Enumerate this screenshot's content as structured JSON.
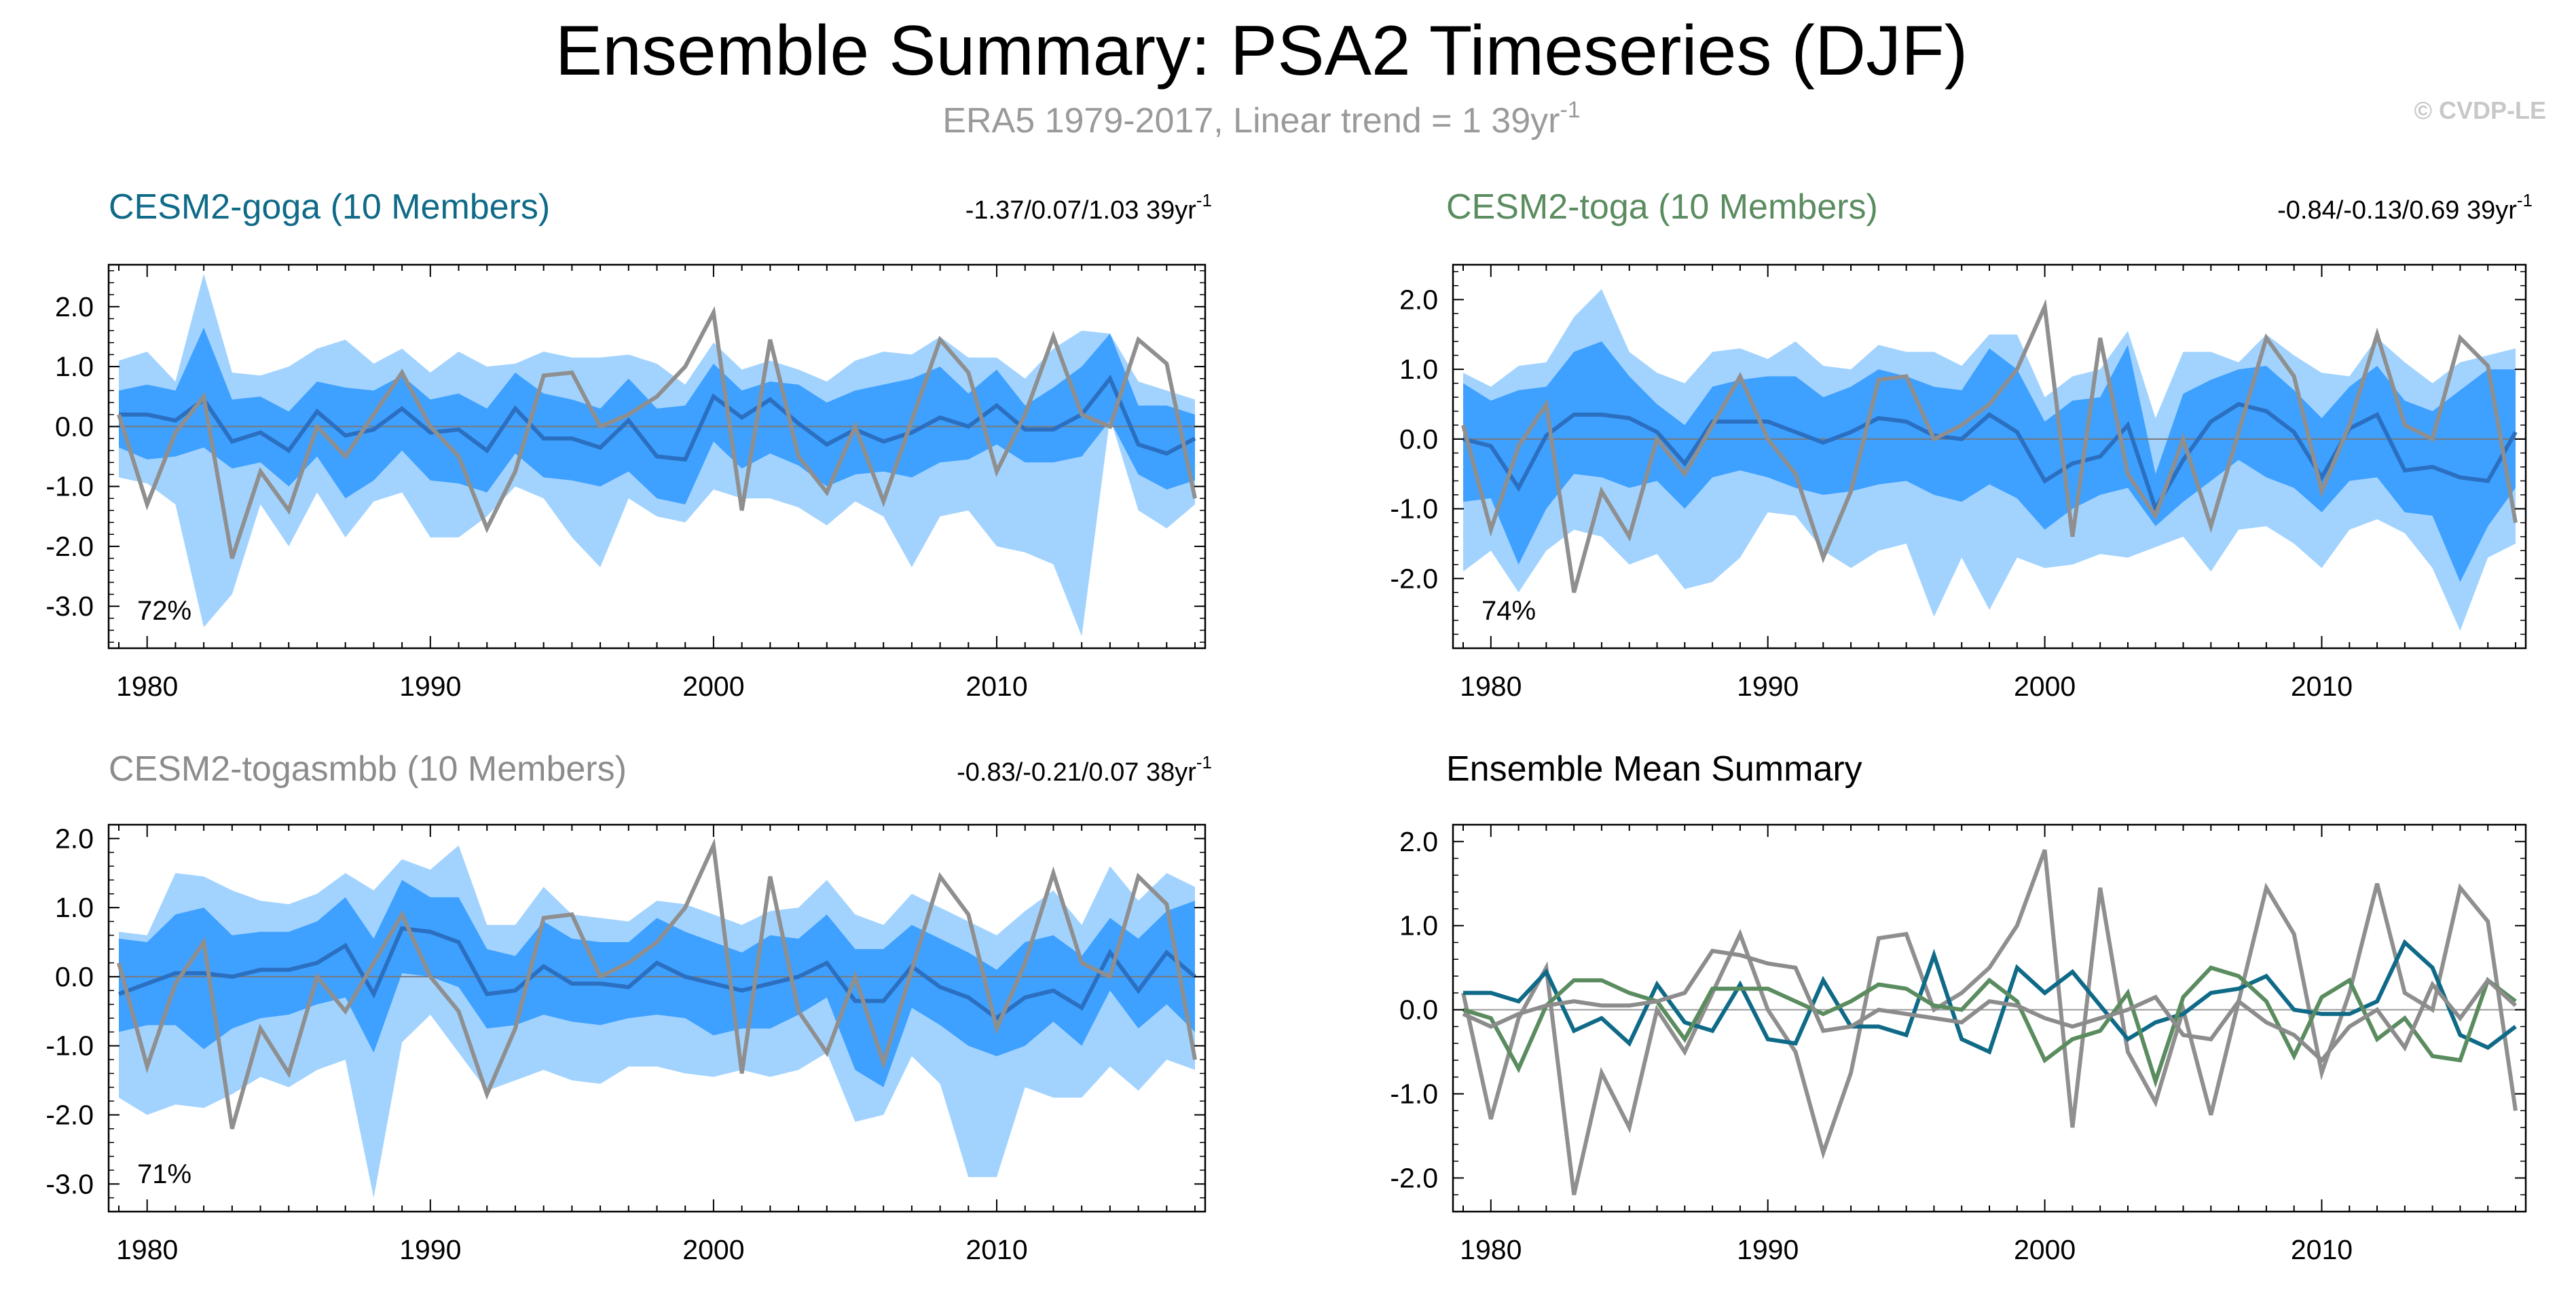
{
  "header": {
    "title": "Ensemble Summary: PSA2 Timeseries (DJF)",
    "subtitle_main": "ERA5 1979-2017, Linear trend = 1 39yr",
    "subtitle_sup": "-1",
    "copyright": "© CVDP-LE"
  },
  "colors": {
    "goga": "#0f6a88",
    "toga": "#5a8c5f",
    "togasmbb": "#8c8c8c",
    "observed": "#8f8f8f",
    "band_outer": "#a2d3ff",
    "band_inner": "#3ea0ff",
    "ens_mean": "#2b6fc0",
    "black": "#000000"
  },
  "chart_data": {
    "years": [
      1979,
      1980,
      1981,
      1982,
      1983,
      1984,
      1985,
      1986,
      1987,
      1988,
      1989,
      1990,
      1991,
      1992,
      1993,
      1994,
      1995,
      1996,
      1997,
      1998,
      1999,
      2000,
      2001,
      2002,
      2003,
      2004,
      2005,
      2006,
      2007,
      2008,
      2009,
      2010,
      2011,
      2012,
      2013,
      2014,
      2015,
      2016,
      2017
    ],
    "observed_era5": [
      0.2,
      -1.3,
      -0.1,
      0.5,
      -2.2,
      -0.75,
      -1.4,
      0.0,
      -0.5,
      0.2,
      0.9,
      0.0,
      -0.5,
      -1.7,
      -0.75,
      0.85,
      0.9,
      0.0,
      0.2,
      0.5,
      1.0,
      1.9,
      -1.4,
      1.45,
      -0.5,
      -1.1,
      0.0,
      -1.25,
      0.1,
      1.45,
      0.9,
      -0.75,
      0.2,
      1.5,
      0.2,
      0.0,
      1.45,
      1.05,
      -1.2
    ],
    "x_ticks": [
      "1980",
      "1990",
      "2000",
      "2010"
    ],
    "panels": [
      {
        "id": "goga",
        "type": "area",
        "title": "CESM2-goga (10 Members)",
        "trend_text": "-1.37/0.07/1.03 39yr",
        "trend_sup": "-1",
        "percent_label": "72%",
        "ylim": [
          -3.7,
          2.7
        ],
        "y_ticks": [
          "2.0",
          "1.0",
          "0.0",
          "-1.0",
          "-2.0",
          "-3.0"
        ],
        "y_tick_values": [
          2,
          1,
          0,
          -1,
          -2,
          -3
        ],
        "mean": [
          0.2,
          0.2,
          0.1,
          0.45,
          -0.25,
          -0.1,
          -0.4,
          0.25,
          -0.15,
          -0.05,
          0.3,
          -0.1,
          -0.05,
          -0.4,
          0.3,
          -0.2,
          -0.2,
          -0.35,
          0.1,
          -0.5,
          -0.55,
          0.5,
          0.15,
          0.45,
          0.05,
          -0.3,
          -0.05,
          -0.25,
          -0.1,
          0.15,
          0.0,
          0.35,
          -0.05,
          -0.05,
          0.2,
          0.8,
          -0.3,
          -0.45,
          -0.2
        ],
        "p10": [
          -0.35,
          -0.55,
          -0.5,
          -0.35,
          -0.7,
          -0.6,
          -1.0,
          -0.5,
          -1.2,
          -0.9,
          -0.4,
          -0.9,
          -0.95,
          -1.1,
          -0.45,
          -0.85,
          -0.9,
          -1.0,
          -0.75,
          -1.2,
          -1.3,
          -0.25,
          -0.7,
          -0.45,
          -0.65,
          -1.0,
          -0.8,
          -0.75,
          -0.85,
          -0.6,
          -0.55,
          -0.3,
          -0.6,
          -0.6,
          -0.5,
          0.1,
          -0.8,
          -1.05,
          -0.9
        ],
        "p90": [
          0.6,
          0.7,
          0.6,
          1.65,
          0.45,
          0.5,
          0.25,
          0.75,
          0.65,
          0.6,
          0.85,
          0.45,
          0.55,
          0.3,
          0.9,
          0.55,
          0.45,
          0.3,
          0.8,
          0.3,
          0.35,
          1.05,
          0.6,
          0.75,
          0.7,
          0.4,
          0.6,
          0.7,
          0.8,
          1.0,
          0.55,
          0.95,
          0.35,
          0.65,
          1.0,
          1.55,
          0.35,
          0.35,
          0.2
        ],
        "min": [
          -0.85,
          -0.95,
          -1.3,
          -3.35,
          -2.8,
          -1.3,
          -2.0,
          -1.1,
          -1.85,
          -1.25,
          -1.1,
          -1.85,
          -1.85,
          -1.5,
          -1.0,
          -1.2,
          -1.85,
          -2.35,
          -1.2,
          -1.5,
          -1.6,
          -1.05,
          -1.2,
          -1.2,
          -1.35,
          -1.65,
          -1.25,
          -1.5,
          -2.35,
          -1.5,
          -1.4,
          -2.0,
          -2.1,
          -2.3,
          -3.5,
          0.15,
          -1.4,
          -1.7,
          -1.3
        ],
        "max": [
          1.1,
          1.25,
          0.75,
          2.55,
          0.9,
          0.85,
          1.0,
          1.3,
          1.45,
          1.05,
          1.3,
          0.9,
          1.25,
          1.0,
          1.05,
          1.25,
          1.15,
          1.15,
          1.2,
          1.05,
          0.7,
          1.4,
          0.95,
          1.1,
          0.95,
          0.75,
          1.1,
          1.25,
          1.2,
          1.5,
          1.15,
          1.15,
          0.8,
          1.3,
          1.6,
          1.55,
          0.75,
          0.6,
          0.45
        ]
      },
      {
        "id": "toga",
        "type": "area",
        "title": "CESM2-toga (10 Members)",
        "trend_text": "-0.84/-0.13/0.69 39yr",
        "trend_sup": "-1",
        "percent_label": "74%",
        "ylim": [
          -3.0,
          2.5
        ],
        "y_ticks": [
          "2.0",
          "1.0",
          "0.0",
          "-1.0",
          "-2.0"
        ],
        "y_tick_values": [
          2,
          1,
          0,
          -1,
          -2
        ],
        "mean": [
          0.0,
          -0.1,
          -0.7,
          0.05,
          0.35,
          0.35,
          0.3,
          0.1,
          -0.35,
          0.25,
          0.25,
          0.25,
          0.1,
          -0.05,
          0.1,
          0.3,
          0.25,
          0.05,
          0.0,
          0.35,
          0.1,
          -0.6,
          -0.35,
          -0.25,
          0.2,
          -1.0,
          -0.3,
          0.25,
          0.5,
          0.4,
          0.1,
          -0.55,
          0.15,
          0.35,
          -0.45,
          -0.4,
          -0.55,
          -0.6,
          0.1
        ],
        "p10": [
          -0.9,
          -0.85,
          -1.8,
          -1.0,
          -0.5,
          -0.55,
          -0.7,
          -0.6,
          -1.0,
          -0.55,
          -0.45,
          -0.55,
          -0.7,
          -0.8,
          -0.75,
          -0.65,
          -0.6,
          -0.8,
          -0.9,
          -0.65,
          -0.85,
          -1.3,
          -1.0,
          -0.8,
          -0.7,
          -1.25,
          -0.9,
          -0.6,
          -0.3,
          -0.55,
          -0.7,
          -1.05,
          -0.6,
          -0.55,
          -1.05,
          -1.1,
          -2.05,
          -1.25,
          -0.7
        ],
        "p90": [
          0.8,
          0.55,
          0.7,
          0.75,
          1.25,
          1.4,
          0.9,
          0.5,
          0.2,
          0.75,
          0.85,
          0.9,
          0.9,
          0.6,
          0.75,
          1.0,
          0.9,
          0.75,
          0.7,
          1.3,
          1.0,
          0.25,
          0.55,
          0.6,
          1.35,
          -0.5,
          0.65,
          0.85,
          1.0,
          1.05,
          0.7,
          0.3,
          0.75,
          1.05,
          0.55,
          0.4,
          0.7,
          1.0,
          1.0
        ],
        "min": [
          -1.9,
          -1.6,
          -2.2,
          -1.6,
          -1.3,
          -1.4,
          -1.8,
          -1.65,
          -2.15,
          -2.05,
          -1.7,
          -1.05,
          -1.1,
          -1.6,
          -1.85,
          -1.6,
          -1.5,
          -2.55,
          -1.7,
          -2.45,
          -1.7,
          -1.85,
          -1.8,
          -1.65,
          -1.7,
          -1.55,
          -1.4,
          -1.9,
          -1.3,
          -1.25,
          -1.5,
          -1.85,
          -1.3,
          -1.15,
          -1.35,
          -1.85,
          -2.75,
          -1.7,
          -1.5
        ],
        "max": [
          0.95,
          0.75,
          1.05,
          1.1,
          1.75,
          2.15,
          1.25,
          0.95,
          0.8,
          1.25,
          1.3,
          1.15,
          1.4,
          1.05,
          1.0,
          1.35,
          1.25,
          1.25,
          1.05,
          1.5,
          1.5,
          0.6,
          0.9,
          1.0,
          1.55,
          0.3,
          1.25,
          1.25,
          1.1,
          1.5,
          1.2,
          0.95,
          0.9,
          1.45,
          1.1,
          0.8,
          1.1,
          1.2,
          1.3
        ]
      },
      {
        "id": "togasmbb",
        "type": "area",
        "title": "CESM2-togasmbb (10 Members)",
        "trend_text": "-0.83/-0.21/0.07 38yr",
        "trend_sup": "-1",
        "percent_label": "71%",
        "ylim": [
          -3.4,
          2.2
        ],
        "y_ticks": [
          "2.0",
          "1.0",
          "0.0",
          "-1.0",
          "-2.0",
          "-3.0"
        ],
        "y_tick_values": [
          2,
          1,
          0,
          -1,
          -2,
          -3
        ],
        "mean": [
          -0.25,
          -0.1,
          0.05,
          0.05,
          0.0,
          0.1,
          0.1,
          0.2,
          0.45,
          -0.25,
          0.7,
          0.65,
          0.5,
          -0.25,
          -0.2,
          0.15,
          -0.1,
          -0.1,
          -0.15,
          0.2,
          0.0,
          -0.1,
          -0.2,
          -0.1,
          0.0,
          0.2,
          -0.35,
          -0.35,
          0.15,
          -0.15,
          -0.3,
          -0.6,
          -0.3,
          -0.2,
          -0.45,
          0.35,
          -0.2,
          0.35,
          0.0
        ],
        "p10": [
          -0.8,
          -0.7,
          -0.7,
          -1.05,
          -0.75,
          -0.6,
          -0.55,
          -0.4,
          -0.3,
          -1.1,
          0.05,
          0.0,
          -0.15,
          -0.75,
          -0.7,
          -0.55,
          -0.65,
          -0.7,
          -0.6,
          -0.55,
          -0.6,
          -0.85,
          -0.75,
          -0.75,
          -0.55,
          -0.3,
          -1.35,
          -1.6,
          -0.45,
          -0.7,
          -1.0,
          -1.15,
          -1.0,
          -0.65,
          -1.0,
          -0.2,
          -0.75,
          -0.4,
          -0.8
        ],
        "p90": [
          0.55,
          0.5,
          0.9,
          1.0,
          0.6,
          0.65,
          0.65,
          0.8,
          1.15,
          0.55,
          1.4,
          1.15,
          1.15,
          0.4,
          0.3,
          0.8,
          0.55,
          0.5,
          0.5,
          0.85,
          0.65,
          0.5,
          0.35,
          0.6,
          0.55,
          0.9,
          0.4,
          0.4,
          0.75,
          0.55,
          0.35,
          0.1,
          0.5,
          0.6,
          0.3,
          0.85,
          0.55,
          0.95,
          1.1
        ],
        "min": [
          -1.75,
          -2.0,
          -1.85,
          -1.9,
          -1.7,
          -1.45,
          -1.6,
          -1.35,
          -1.2,
          -3.2,
          -0.95,
          -0.55,
          -1.1,
          -1.65,
          -1.5,
          -1.35,
          -1.5,
          -1.55,
          -1.3,
          -1.3,
          -1.4,
          -1.45,
          -1.35,
          -1.45,
          -1.35,
          -1.1,
          -2.1,
          -2.0,
          -1.15,
          -1.55,
          -2.9,
          -2.9,
          -1.6,
          -1.75,
          -1.75,
          -1.3,
          -1.65,
          -1.2,
          -1.35
        ],
        "max": [
          0.65,
          0.6,
          1.5,
          1.45,
          1.25,
          1.1,
          1.05,
          1.2,
          1.5,
          1.25,
          1.7,
          1.55,
          1.9,
          0.75,
          0.75,
          1.3,
          0.9,
          0.85,
          0.8,
          1.1,
          1.05,
          0.9,
          0.75,
          0.95,
          1.0,
          1.4,
          0.9,
          0.75,
          1.2,
          1.0,
          0.8,
          0.6,
          0.95,
          1.25,
          0.75,
          1.6,
          1.1,
          1.5,
          1.3
        ]
      },
      {
        "id": "ensemble-mean",
        "type": "line",
        "title": "Ensemble Mean Summary",
        "ylim": [
          -2.4,
          2.2
        ],
        "y_ticks": [
          "2.0",
          "1.0",
          "0.0",
          "-1.0",
          "-2.0"
        ],
        "y_tick_values": [
          2,
          1,
          0,
          -1,
          -2
        ],
        "series": [
          {
            "name": "CESM2-goga",
            "color_key": "goga",
            "values": [
              0.2,
              0.2,
              0.1,
              0.45,
              -0.25,
              -0.1,
              -0.4,
              0.3,
              -0.15,
              -0.25,
              0.3,
              -0.35,
              -0.4,
              0.35,
              -0.2,
              -0.2,
              -0.3,
              0.65,
              -0.35,
              -0.5,
              0.5,
              0.2,
              0.45,
              0.05,
              -0.35,
              -0.15,
              -0.05,
              0.2,
              0.25,
              0.4,
              0.0,
              -0.05,
              -0.05,
              0.1,
              0.8,
              0.5,
              -0.3,
              -0.45,
              -0.2
            ]
          },
          {
            "name": "CESM2-toga",
            "color_key": "toga",
            "values": [
              0.0,
              -0.1,
              -0.7,
              0.05,
              0.35,
              0.35,
              0.2,
              0.1,
              -0.35,
              0.25,
              0.25,
              0.25,
              0.1,
              -0.05,
              0.1,
              0.3,
              0.25,
              0.05,
              0.0,
              0.35,
              0.1,
              -0.6,
              -0.35,
              -0.25,
              0.2,
              -0.85,
              0.15,
              0.5,
              0.4,
              0.1,
              -0.55,
              0.15,
              0.35,
              -0.35,
              -0.1,
              -0.55,
              -0.6,
              0.35,
              0.1
            ]
          },
          {
            "name": "CESM2-togasmbb",
            "color_key": "togasmbb",
            "values": [
              -0.05,
              -0.2,
              -0.05,
              0.05,
              0.1,
              0.05,
              0.05,
              0.1,
              0.2,
              0.7,
              0.65,
              0.55,
              0.5,
              -0.25,
              -0.2,
              0.0,
              -0.05,
              -0.1,
              -0.15,
              0.1,
              0.05,
              -0.1,
              -0.2,
              -0.1,
              0.0,
              0.15,
              -0.3,
              -0.35,
              0.1,
              -0.15,
              -0.3,
              -0.6,
              -0.2,
              0.0,
              -0.45,
              0.3,
              -0.1,
              0.35,
              0.05
            ]
          }
        ]
      }
    ]
  }
}
